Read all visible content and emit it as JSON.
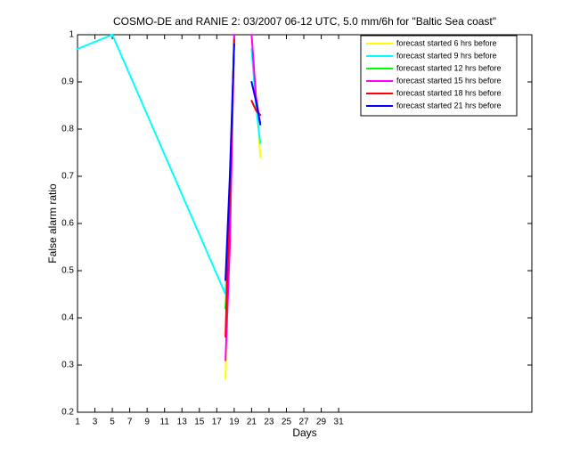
{
  "chart_data": {
    "type": "line",
    "title": "COSMO-DE and RANIE 2: 03/2007 06-12 UTC, 5.0 mm/6h for \"Baltic Sea coast\"",
    "x_label": "Days",
    "y_label": "False alarm ratio",
    "x": [
      1,
      5,
      18,
      18.5,
      19,
      19.5,
      20,
      20.5,
      21,
      21.5,
      22
    ],
    "series": [
      {
        "name": "forecast started 6 hrs before",
        "color": "#ffff00",
        "values": [
          null,
          null,
          0.27,
          0.62,
          1.0,
          null,
          null,
          null,
          1.0,
          0.88,
          0.74
        ]
      },
      {
        "name": "forecast started 9 hrs before",
        "color": "#00ffff",
        "values": [
          0.97,
          1.0,
          0.45,
          0.65,
          1.0,
          null,
          null,
          null,
          0.97,
          0.85,
          0.77
        ]
      },
      {
        "name": "forecast started 12 hrs before",
        "color": "#00ff00",
        "values": [
          null,
          null,
          0.42,
          0.6,
          1.0,
          null,
          null,
          null,
          null,
          null,
          null
        ]
      },
      {
        "name": "forecast started 15 hrs before",
        "color": "#ff00ff",
        "values": [
          null,
          null,
          0.31,
          0.55,
          1.0,
          null,
          null,
          null,
          1.0,
          0.87,
          0.81
        ]
      },
      {
        "name": "forecast started 18 hrs before",
        "color": "#ff0000",
        "values": [
          null,
          null,
          0.36,
          0.66,
          0.99,
          null,
          null,
          null,
          0.86,
          0.84,
          0.83
        ]
      },
      {
        "name": "forecast started 21 hrs before",
        "color": "#0000ff",
        "values": [
          null,
          null,
          0.48,
          0.7,
          0.98,
          null,
          null,
          null,
          0.9,
          0.86,
          0.81
        ]
      }
    ],
    "xlim": [
      1,
      53.2
    ],
    "ylim": [
      0.2,
      1
    ],
    "xticks": [
      1,
      3,
      5,
      7,
      9,
      11,
      13,
      15,
      17,
      19,
      21,
      23,
      25,
      27,
      29,
      31
    ],
    "yticks": [
      0.2,
      0.3,
      0.4,
      0.5,
      0.6,
      0.7,
      0.8,
      0.9,
      1
    ],
    "grid": false,
    "legend": "upper-right"
  }
}
